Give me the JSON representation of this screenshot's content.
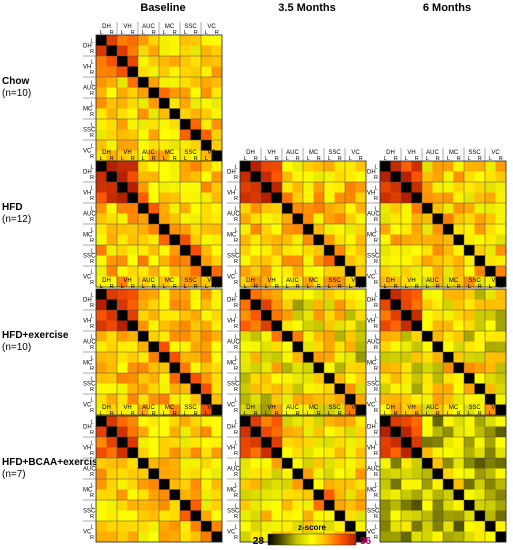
{
  "columns": [
    "Baseline",
    "3.5 Months",
    "6 Months"
  ],
  "groups": [
    {
      "name": "Chow",
      "n": "(n=10)"
    },
    {
      "name": "HFD",
      "n": "(n=12)"
    },
    {
      "name": "HFD+exercise",
      "n": "(n=10)"
    },
    {
      "name": "HFD+BCAA+exercise",
      "n": "(n=7)"
    }
  ],
  "chart_data": {
    "type": "heatmap",
    "regions": [
      "DH",
      "VH",
      "AUC",
      "MC",
      "SSC",
      "VC"
    ],
    "hemispheres": [
      "L",
      "R"
    ],
    "colorbar": {
      "title": "z-score",
      "min": 28,
      "max": 36,
      "stops": [
        "#000000",
        "#5a5a00",
        "#c8c800",
        "#ffff00",
        "#ffb000",
        "#ff5500",
        "#b42000"
      ]
    },
    "matrices": [
      {
        "group": "Chow",
        "timepoint": "Baseline",
        "present": true,
        "mean": 32.6,
        "spread": 1.2,
        "hot": 34.5
      },
      {
        "group": "Chow",
        "timepoint": "3.5 Months",
        "present": false
      },
      {
        "group": "Chow",
        "timepoint": "6 Months",
        "present": false
      },
      {
        "group": "HFD",
        "timepoint": "Baseline",
        "present": true,
        "mean": 32.9,
        "spread": 1.3,
        "hot": 35.2
      },
      {
        "group": "HFD",
        "timepoint": "3.5 Months",
        "present": true,
        "mean": 32.8,
        "spread": 1.3,
        "hot": 35.0
      },
      {
        "group": "HFD",
        "timepoint": "6 Months",
        "present": true,
        "mean": 32.6,
        "spread": 1.3,
        "hot": 35.0
      },
      {
        "group": "HFD+exercise",
        "timepoint": "Baseline",
        "present": true,
        "mean": 32.9,
        "spread": 1.2,
        "hot": 34.8
      },
      {
        "group": "HFD+exercise",
        "timepoint": "3.5 Months",
        "present": true,
        "mean": 31.9,
        "spread": 1.8,
        "hot": 34.0
      },
      {
        "group": "HFD+exercise",
        "timepoint": "6 Months",
        "present": true,
        "mean": 31.9,
        "spread": 1.7,
        "hot": 34.5
      },
      {
        "group": "HFD+BCAA+exercise",
        "timepoint": "Baseline",
        "present": true,
        "mean": 32.7,
        "spread": 1.2,
        "hot": 34.4
      },
      {
        "group": "HFD+BCAA+exercise",
        "timepoint": "3.5 Months",
        "present": true,
        "mean": 32.3,
        "spread": 1.5,
        "hot": 34.5
      },
      {
        "group": "HFD+BCAA+exercise",
        "timepoint": "6 Months",
        "present": true,
        "mean": 30.8,
        "spread": 1.6,
        "hot": 34.8
      }
    ]
  }
}
